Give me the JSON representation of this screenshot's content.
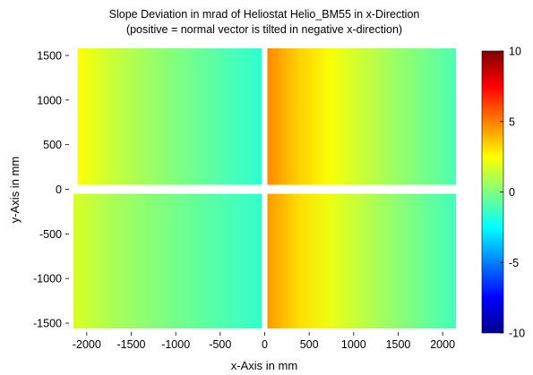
{
  "chart_data": {
    "type": "heatmap",
    "title_line1": "Slope Deviation in mrad of Heliostat Helio_BM55 in x-Direction",
    "title_line2": "(positive = normal vector is tilted in negative x-direction)",
    "xlabel": "x-Axis in mm",
    "ylabel": "y-Axis in mm",
    "xlim": [
      -2200,
      2200
    ],
    "ylim": [
      -1600,
      1600
    ],
    "x_ticks": [
      -2000,
      -1500,
      -1000,
      -500,
      0,
      500,
      1000,
      1500,
      2000
    ],
    "y_ticks": [
      -1500,
      -1000,
      -500,
      0,
      500,
      1000,
      1500
    ],
    "colorbar": {
      "range": [
        -10,
        10
      ],
      "ticks": [
        -10,
        -5,
        0,
        5,
        10
      ],
      "colormap": "jet"
    },
    "panels": [
      {
        "name": "upper-left",
        "x": [
          -2100,
          -30
        ],
        "y": [
          50,
          1580
        ],
        "value_left": 2.5,
        "value_right": -1.6
      },
      {
        "name": "upper-right",
        "x": [
          30,
          2150
        ],
        "y": [
          50,
          1580
        ],
        "value_left": 4.8,
        "value_right": -1.0
      },
      {
        "name": "lower-left",
        "x": [
          -2150,
          -30
        ],
        "y": [
          -1560,
          -50
        ],
        "value_left": 1.8,
        "value_right": -1.5
      },
      {
        "name": "lower-right",
        "x": [
          30,
          2150
        ],
        "y": [
          -1560,
          -50
        ],
        "value_left": 4.5,
        "value_right": -1.2
      }
    ]
  }
}
